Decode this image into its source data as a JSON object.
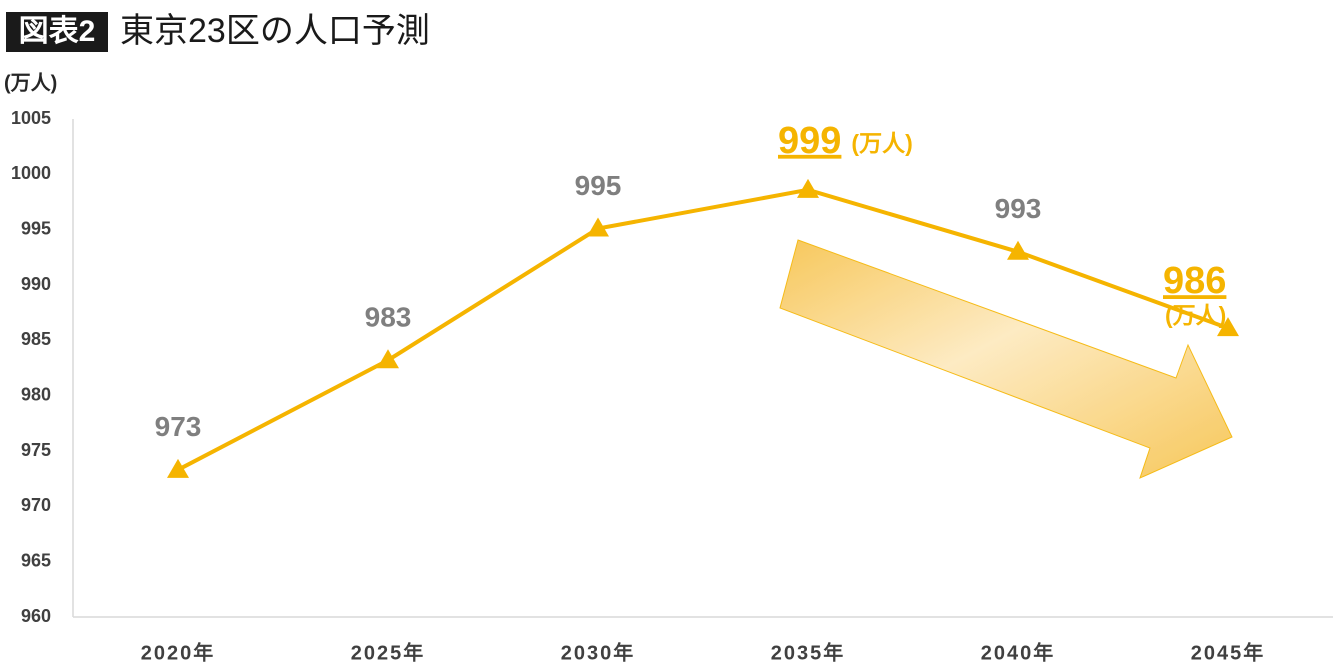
{
  "chart_data": {
    "type": "line",
    "badge": "図表2",
    "title": "東京23区の人口予測",
    "y_label": "(万人)",
    "categories": [
      "2020年",
      "2025年",
      "2030年",
      "2035年",
      "2040年",
      "2045年"
    ],
    "series": [
      {
        "name": "人口",
        "color": "#f5b400",
        "values": [
          973.3,
          983.2,
          995.1,
          998.6,
          993.0,
          986.1
        ],
        "value_labels": [
          "973",
          "983",
          "995",
          "999",
          "993",
          "986"
        ]
      }
    ],
    "annotations": [
      {
        "text": "(万人)",
        "at": 3
      },
      {
        "text": "(万人)",
        "at": 5
      }
    ],
    "ylim": [
      960,
      1005
    ],
    "yticks": [
      960,
      965,
      970,
      975,
      980,
      985,
      990,
      995,
      1000,
      1005
    ],
    "grid": false
  }
}
